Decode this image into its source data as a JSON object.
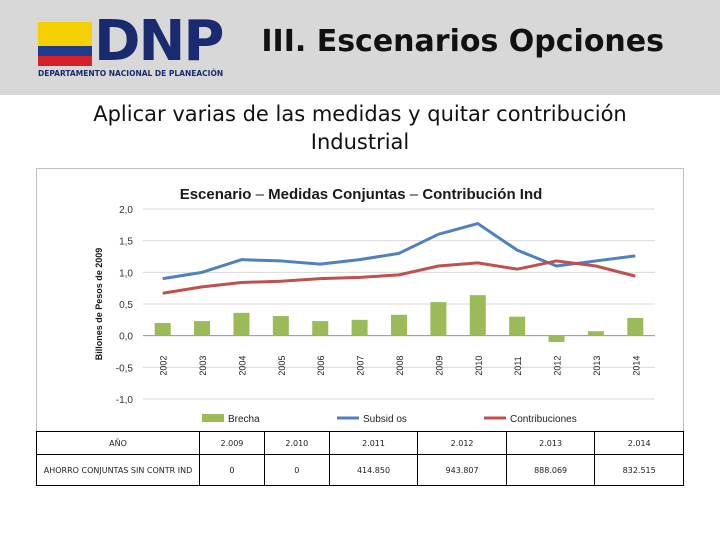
{
  "header": {
    "logo_text": "DNP",
    "logo_subtitle": "DEPARTAMENTO NACIONAL DE PLANEACIÓN",
    "flag_colors": [
      "#f5d000",
      "#1f3c8c",
      "#d42027"
    ],
    "title": "III. Escenarios Opciones"
  },
  "subtitle_line1": "Aplicar varias de las medidas y quitar contribución",
  "subtitle_line2": "Industrial",
  "chart_data": {
    "type": "bar+line",
    "title_part1": "Escenario",
    "title_sep1": " – ",
    "title_part2": "Medidas Conjuntas",
    "title_sep2": " – ",
    "title_part3": "Contribución Ind",
    "ylabel": "Billones de Pesos de 2009",
    "ylim": [
      -1.0,
      2.0
    ],
    "yticks": [
      2.0,
      1.5,
      1.0,
      0.5,
      0.0,
      -0.5,
      -1.0
    ],
    "ytick_labels": [
      "2,0",
      "1,5",
      "1,0",
      "0,5",
      "0,0",
      "-0,5",
      "-1,0"
    ],
    "categories": [
      "2002",
      "2003",
      "2004",
      "2005",
      "2006",
      "2007",
      "2008",
      "2009",
      "2010",
      "2011",
      "2012",
      "2013",
      "2014"
    ],
    "series": [
      {
        "name": "Brecha",
        "kind": "bar",
        "color": "#9bbb59",
        "values": [
          0.2,
          0.23,
          0.36,
          0.31,
          0.23,
          0.25,
          0.33,
          0.53,
          0.64,
          0.3,
          -0.1,
          0.07,
          0.28
        ]
      },
      {
        "name": "Subsid os",
        "kind": "line",
        "color": "#4f81bd",
        "values": [
          0.9,
          1.0,
          1.2,
          1.18,
          1.13,
          1.2,
          1.3,
          1.6,
          1.77,
          1.35,
          1.1,
          1.18,
          1.26
        ]
      },
      {
        "name": "Contribuciones",
        "kind": "line",
        "color": "#c0504d",
        "values": [
          0.67,
          0.77,
          0.84,
          0.86,
          0.9,
          0.92,
          0.96,
          1.1,
          1.15,
          1.05,
          1.18,
          1.1,
          0.94
        ]
      }
    ],
    "legend_position": "bottom"
  },
  "table": {
    "header_label": "AÑO",
    "years": [
      "2.009",
      "2.010",
      "2.011",
      "2.012",
      "2.013",
      "2.014"
    ],
    "row_label": "AHORRO CONJUNTAS SIN CONTR IND",
    "values": [
      "0",
      "0",
      "414.850",
      "943.807",
      "888.069",
      "832.515"
    ]
  }
}
